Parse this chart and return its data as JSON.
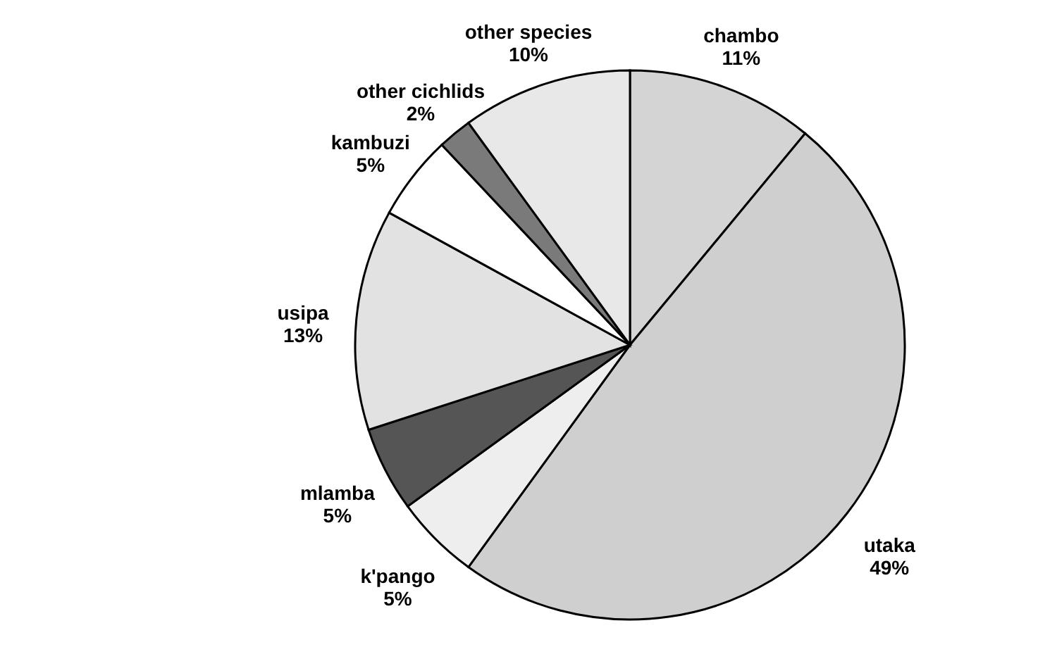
{
  "chart_data": {
    "type": "pie",
    "categories": [
      "chambo",
      "utaka",
      "k'pango",
      "mlamba",
      "usipa",
      "kambuzi",
      "other cichlids",
      "other species"
    ],
    "values": [
      11,
      49,
      5,
      5,
      13,
      5,
      2,
      10
    ],
    "value_labels": [
      "11%",
      "49%",
      "5%",
      "5%",
      "13%",
      "5%",
      "2%",
      "10%"
    ],
    "colors": [
      "#d4d4d4",
      "#cfcfcf",
      "#eeeeee",
      "#555555",
      "#e2e2e2",
      "#ffffff",
      "#7a7a7a",
      "#e8e8e8"
    ]
  }
}
